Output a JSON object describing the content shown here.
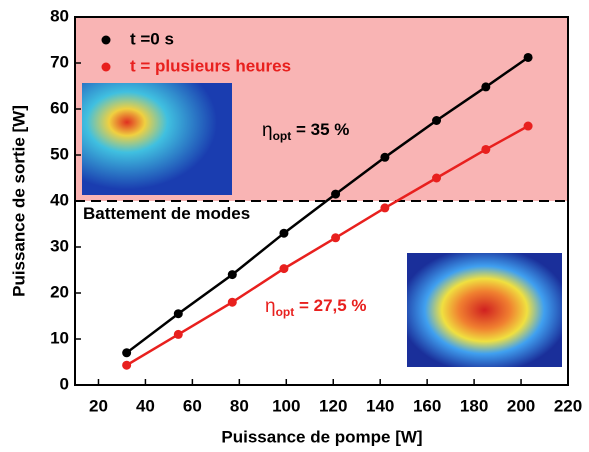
{
  "chart_data": {
    "type": "line",
    "xlabel": "Puissance de pompe [W]",
    "ylabel": "Puissance de sortie [W]",
    "xlim": [
      10,
      220
    ],
    "ylim": [
      0,
      80
    ],
    "xticks": [
      20,
      40,
      60,
      80,
      100,
      120,
      140,
      160,
      180,
      200,
      220
    ],
    "yticks": [
      0,
      10,
      20,
      30,
      40,
      50,
      60,
      70,
      80
    ],
    "threshold": 40,
    "shade_color": "#f9b4b4",
    "legend": "upper left",
    "series": [
      {
        "name": "t =0 s",
        "color": "#000000",
        "x": [
          32,
          54,
          77,
          99,
          121,
          142,
          164,
          185,
          203
        ],
        "values": [
          7,
          15.5,
          24,
          33,
          41.5,
          49.5,
          57.5,
          64.8,
          71.2
        ]
      },
      {
        "name": "t = plusieurs heures",
        "color": "#e8201e",
        "x": [
          32,
          54,
          77,
          99,
          121,
          142,
          164,
          185,
          203
        ],
        "values": [
          4.3,
          11,
          18,
          25.3,
          32,
          38.5,
          45,
          51.2,
          56.3
        ]
      }
    ],
    "annotations": [
      {
        "text": "Battement de modes",
        "color": "#000000"
      },
      {
        "symbol": "η",
        "subscript": "opt",
        "text": " = 35 %",
        "color": "#000000"
      },
      {
        "symbol": "η",
        "subscript": "opt",
        "text": " = 27,5 %",
        "color": "#e8201e"
      }
    ]
  }
}
